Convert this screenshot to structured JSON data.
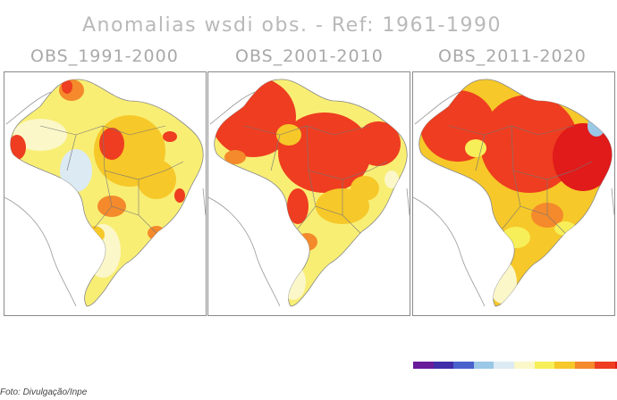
{
  "figure": {
    "title": "Anomalias wsdi obs. - Ref: 1961-1990"
  },
  "panels": [
    {
      "title": "OBS_1991-2000",
      "intensity": "moderate"
    },
    {
      "title": "OBS_2001-2010",
      "intensity": "high"
    },
    {
      "title": "OBS_2011-2020",
      "intensity": "very-high"
    }
  ],
  "colorbar": {
    "colors": [
      "#6a1b9a",
      "#3f2ea8",
      "#4a62cc",
      "#9ac8e6",
      "#dceaf3",
      "#fbf7c9",
      "#f7ef59",
      "#f6c829",
      "#f48a2b",
      "#ee3d20",
      "#e11a1a"
    ]
  },
  "caption": "Foto: Divulgação/Inpe"
}
